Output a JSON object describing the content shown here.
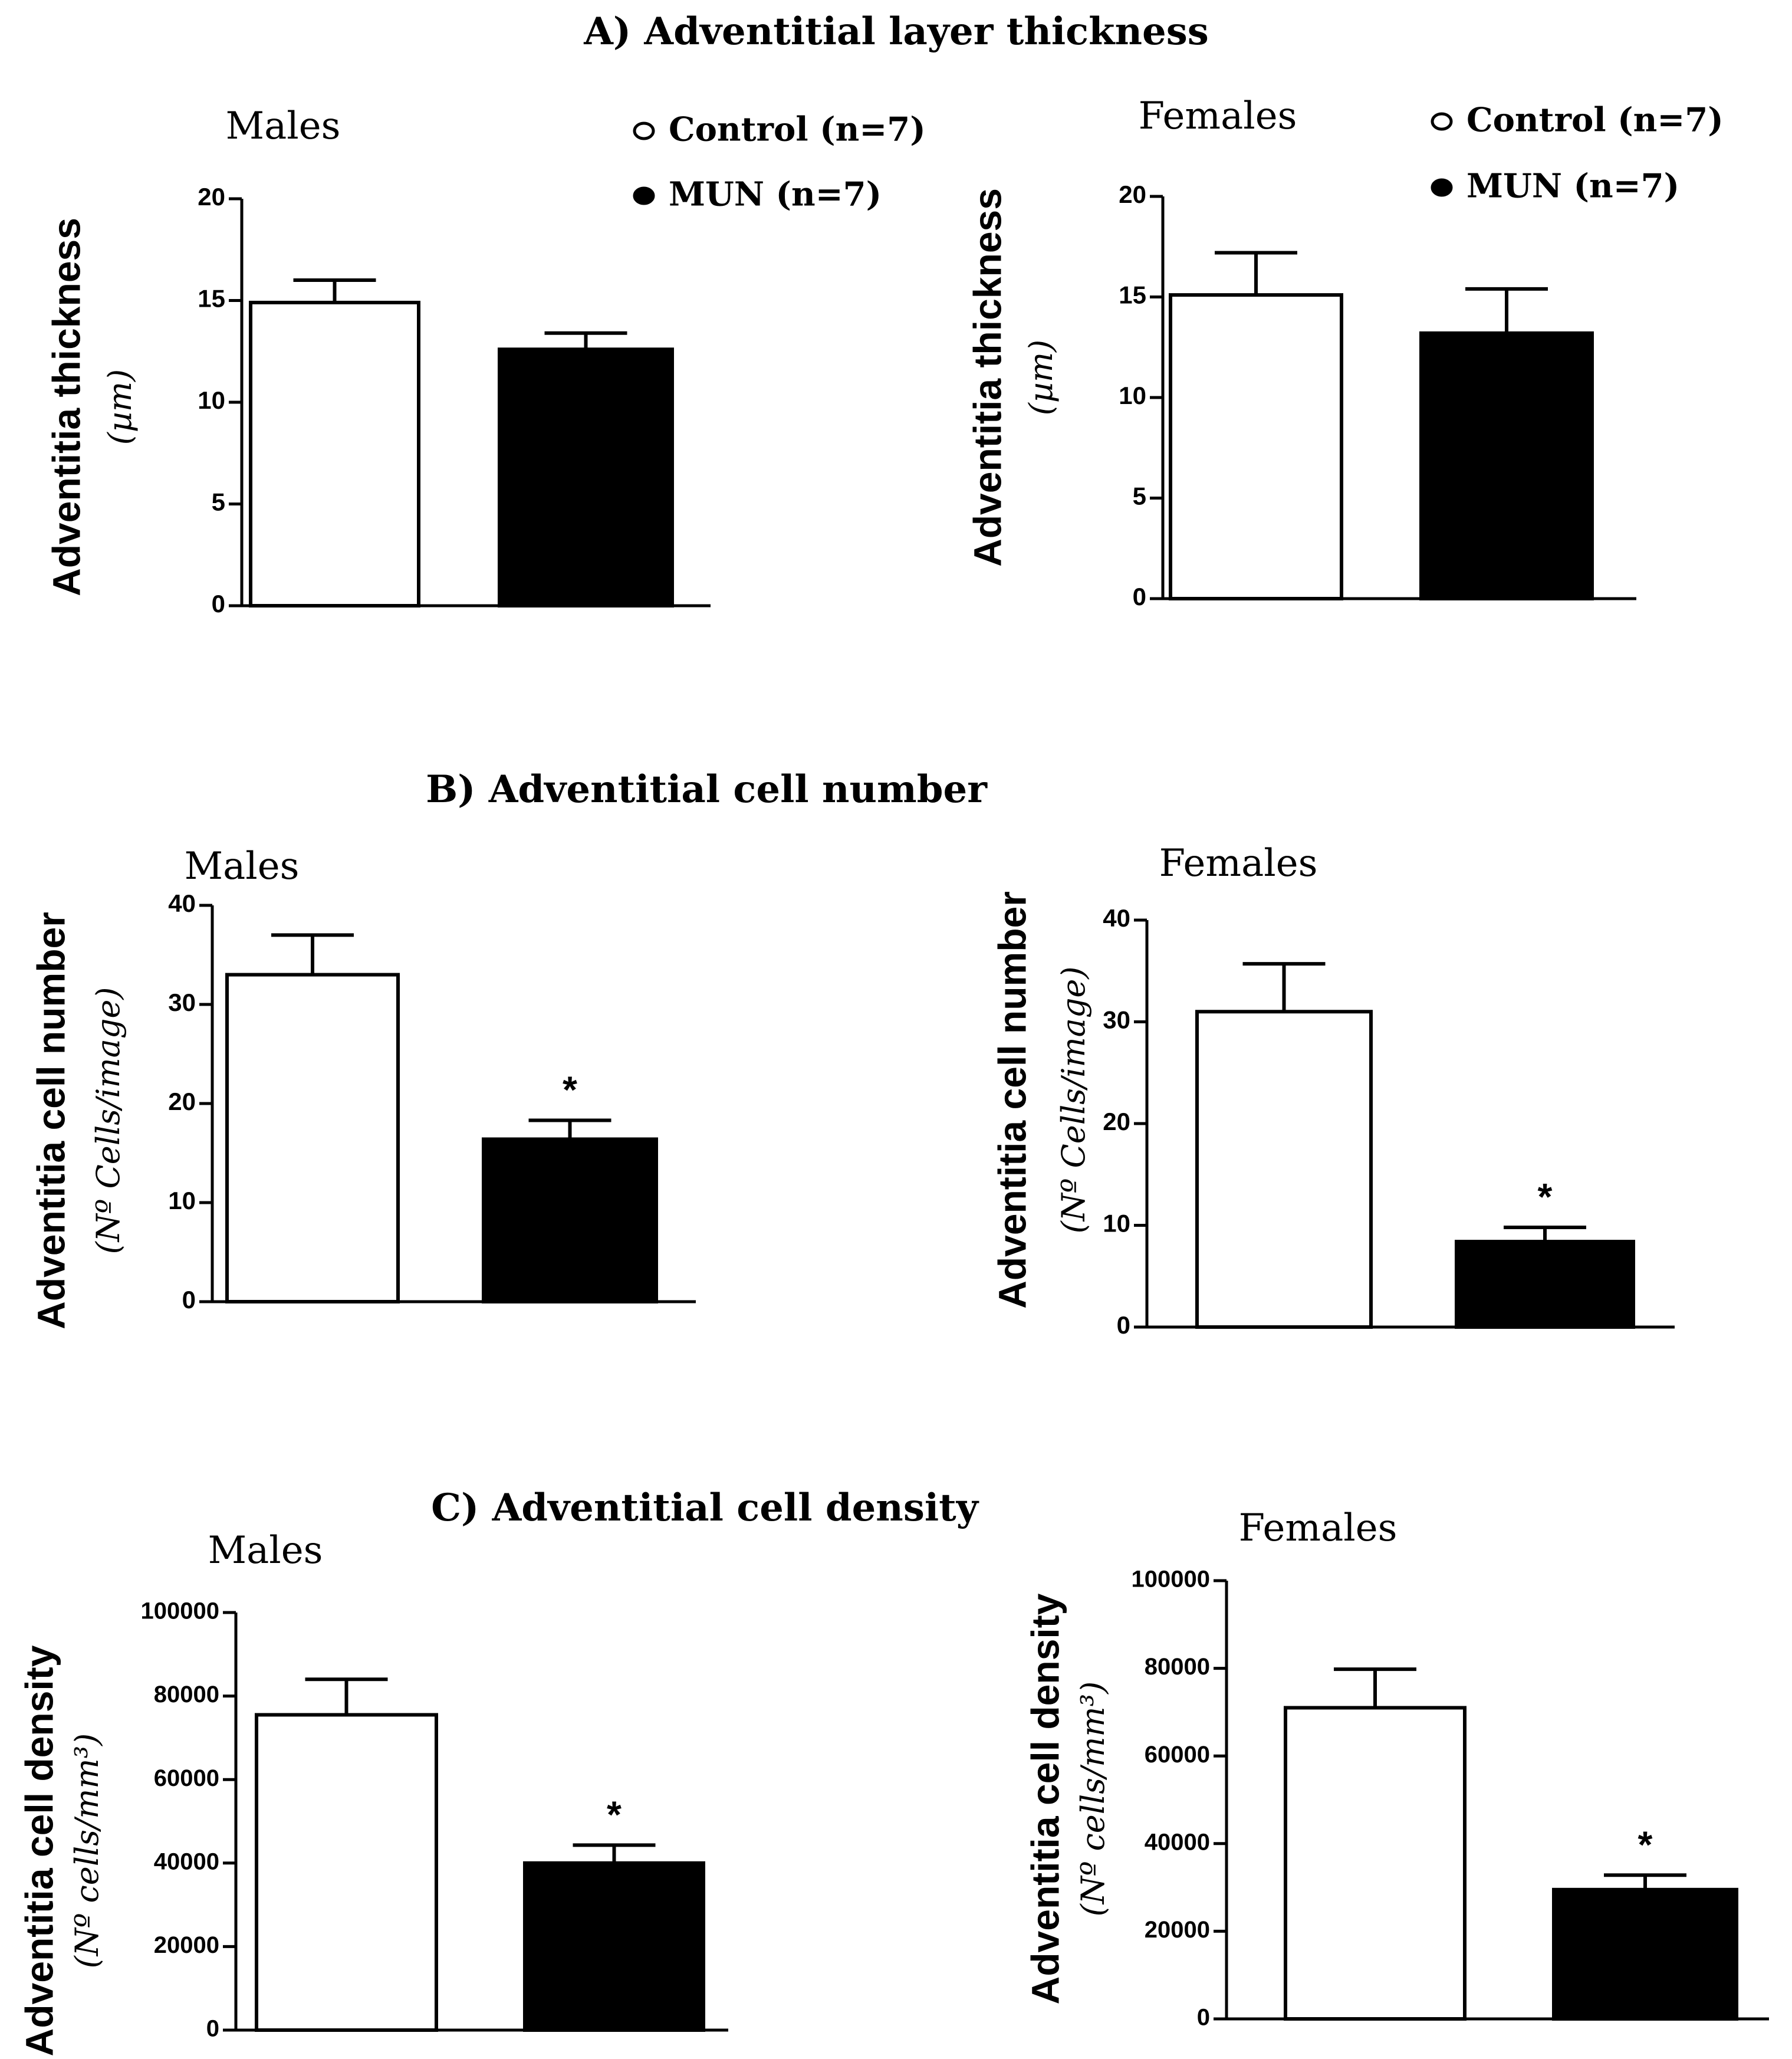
{
  "figure": {
    "legend": {
      "control_label": "Control (n=7)",
      "mun_label": "MUN (n=7)"
    },
    "colors": {
      "control": "#ffffff",
      "mun": "#000000",
      "axis": "#000000"
    }
  },
  "chart_data": [
    {
      "type": "bar",
      "section_title": "A) Adventitial layer thickness",
      "panel_title": "Males",
      "ylabel": "Adventitia thickness",
      "ylabel_unit": "(µm)",
      "ylim": [
        0,
        20
      ],
      "yticks": [
        0,
        5,
        10,
        15,
        20
      ],
      "categories": [
        "Control",
        "MUN"
      ],
      "values": [
        14.9,
        12.6
      ],
      "errors": [
        1.1,
        0.8
      ],
      "significance": [
        "",
        ""
      ],
      "legend": true
    },
    {
      "type": "bar",
      "section_title": "",
      "panel_title": "Females",
      "ylabel": "Adventitia thickness",
      "ylabel_unit": "(µm)",
      "ylim": [
        0,
        20
      ],
      "yticks": [
        0,
        5,
        10,
        15,
        20
      ],
      "categories": [
        "Control",
        "MUN"
      ],
      "values": [
        15.1,
        13.2
      ],
      "errors": [
        2.1,
        2.2
      ],
      "significance": [
        "",
        ""
      ],
      "legend": true
    },
    {
      "type": "bar",
      "section_title": "B) Adventitial cell number",
      "panel_title": "Males",
      "ylabel": "Adventitia cell number",
      "ylabel_unit": "(Nº Cells/image)",
      "ylim": [
        0,
        40
      ],
      "yticks": [
        0,
        10,
        20,
        30,
        40
      ],
      "categories": [
        "Control",
        "MUN"
      ],
      "values": [
        33.0,
        16.4
      ],
      "errors": [
        4.0,
        1.9
      ],
      "significance": [
        "",
        "*"
      ],
      "legend": false
    },
    {
      "type": "bar",
      "section_title": "",
      "panel_title": "Females",
      "ylabel": "Adventitia cell number",
      "ylabel_unit": "(Nº Cells/image)",
      "ylim": [
        0,
        40
      ],
      "yticks": [
        0,
        10,
        20,
        30,
        40
      ],
      "categories": [
        "Control",
        "MUN"
      ],
      "values": [
        31.0,
        8.4
      ],
      "errors": [
        4.7,
        1.4
      ],
      "significance": [
        "",
        "*"
      ],
      "legend": false
    },
    {
      "type": "bar",
      "section_title": "C) Adventitial cell density",
      "panel_title": "Males",
      "ylabel": "Adventitia cell density",
      "ylabel_unit": "(Nº cells/mm³)",
      "ylim": [
        0,
        100000
      ],
      "yticks": [
        0,
        20000,
        40000,
        60000,
        80000,
        100000
      ],
      "categories": [
        "Control",
        "MUN"
      ],
      "values": [
        75500,
        40000
      ],
      "errors": [
        8500,
        4300
      ],
      "significance": [
        "",
        "*"
      ],
      "legend": false
    },
    {
      "type": "bar",
      "section_title": "",
      "panel_title": "Females",
      "ylabel": "Adventitia cell density",
      "ylabel_unit": "(Nº cells/mm³)",
      "ylim": [
        0,
        100000
      ],
      "yticks": [
        0,
        20000,
        40000,
        60000,
        80000,
        100000
      ],
      "categories": [
        "Control",
        "MUN"
      ],
      "values": [
        71000,
        29500
      ],
      "errors": [
        8800,
        3300
      ],
      "significance": [
        "",
        "*"
      ],
      "legend": false
    }
  ]
}
